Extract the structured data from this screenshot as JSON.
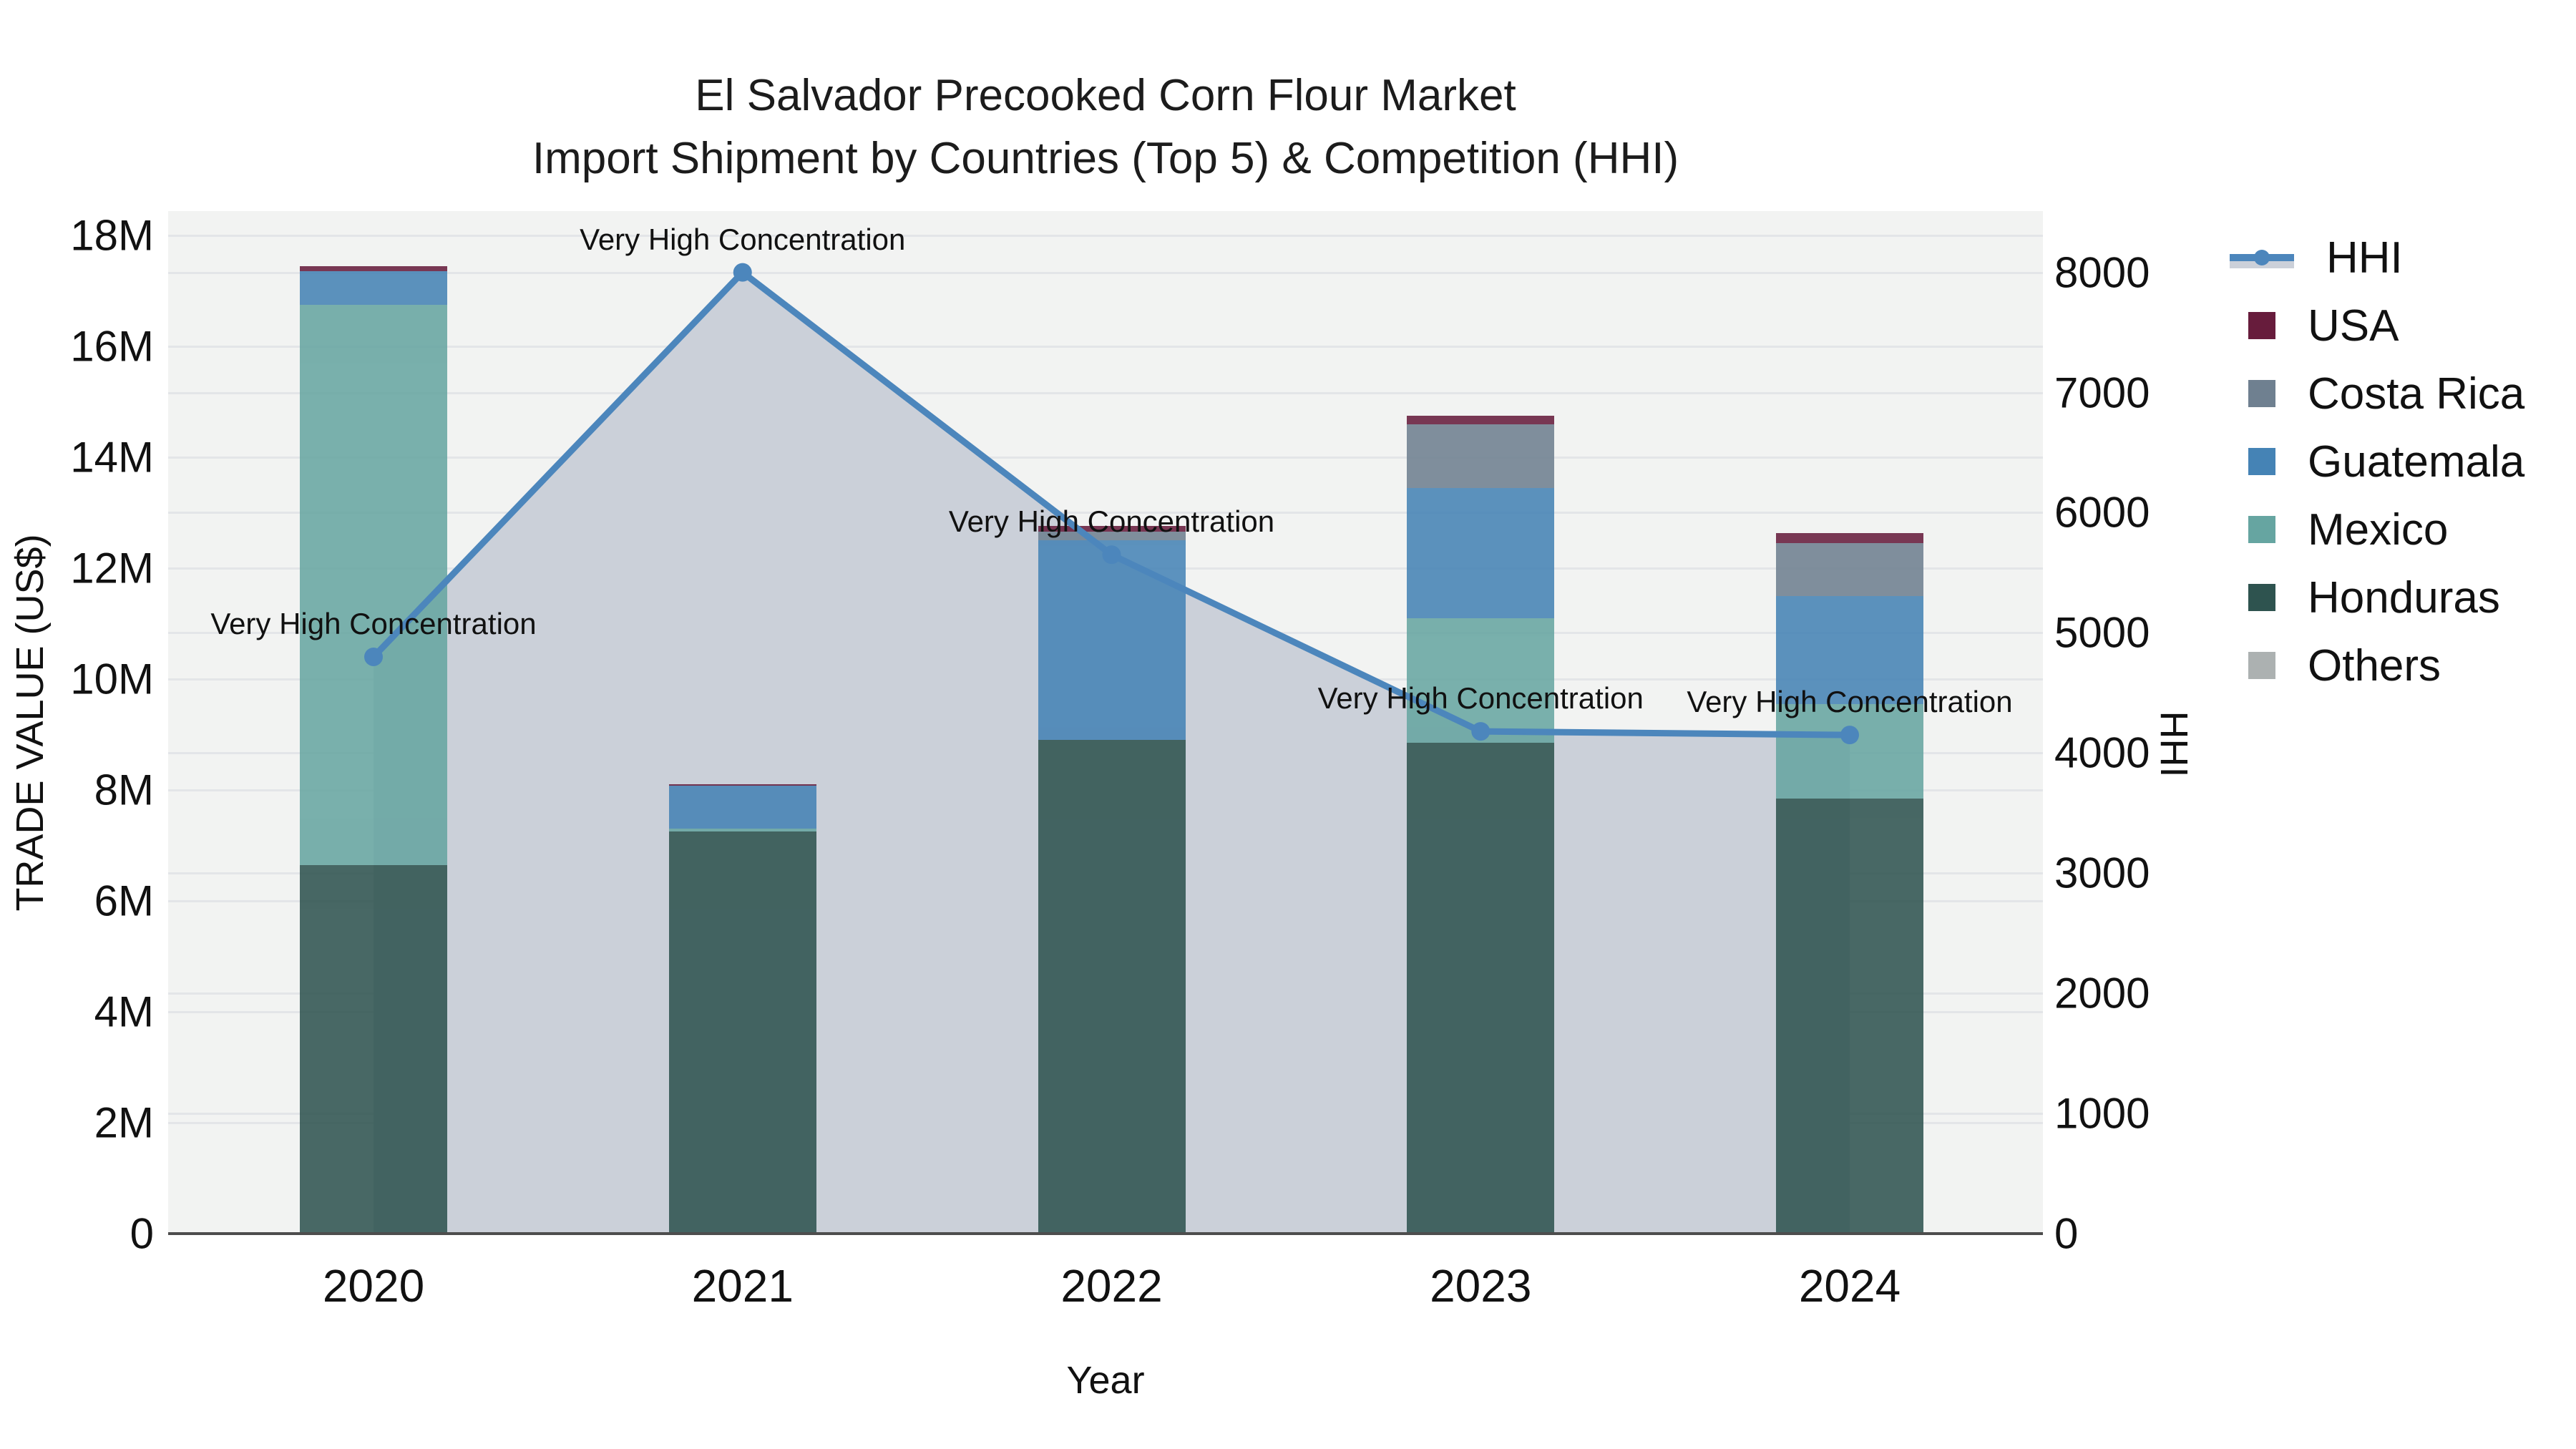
{
  "title": {
    "line1": "El Salvador Precooked Corn Flour Market",
    "line2": "Import Shipment by Countries (Top 5) & Competition (HHI)"
  },
  "axes": {
    "left_title": "TRADE VALUE (US$)",
    "right_title": "HHI",
    "x_title": "Year",
    "left_tick_labels": [
      "0",
      "2M",
      "4M",
      "6M",
      "8M",
      "10M",
      "12M",
      "14M",
      "16M",
      "18M"
    ],
    "right_tick_labels": [
      "0",
      "1000",
      "2000",
      "3000",
      "4000",
      "5000",
      "6000",
      "7000",
      "8000"
    ]
  },
  "colors": {
    "plot_bg": "#f2f3f2",
    "grid": "#e3e5e8",
    "axis_line": "#4d4d4d",
    "hhi": "#4c86bc",
    "hhi_area": "#cbd0d9",
    "usa": "#671c3c",
    "costa_rica": "#6f8090",
    "guatemala": "#4583b5",
    "mexico": "#66a5a1",
    "honduras": "#2e534f",
    "others": "#acb1b1",
    "text": "#111111"
  },
  "legend": [
    {
      "key": "hhi",
      "label": "HHI",
      "glyph": "line-marker"
    },
    {
      "key": "usa",
      "label": "USA",
      "glyph": "square"
    },
    {
      "key": "costa_rica",
      "label": "Costa Rica",
      "glyph": "square"
    },
    {
      "key": "guatemala",
      "label": "Guatemala",
      "glyph": "square"
    },
    {
      "key": "mexico",
      "label": "Mexico",
      "glyph": "square"
    },
    {
      "key": "honduras",
      "label": "Honduras",
      "glyph": "square"
    },
    {
      "key": "others",
      "label": "Others",
      "glyph": "square"
    }
  ],
  "chart_data": {
    "type": "bar",
    "subtype": "stacked-bars-with-line-overlay",
    "title": "El Salvador Precooked Corn Flour Market — Import Shipment by Countries (Top 5) & Competition (HHI)",
    "xlabel": "Year",
    "ylabel": "TRADE VALUE (US$)",
    "y2label": "HHI",
    "categories": [
      "2020",
      "2021",
      "2022",
      "2023",
      "2024"
    ],
    "bar_units": "million US$",
    "series": [
      {
        "name": "Honduras",
        "color_key": "honduras",
        "values": [
          6.65,
          7.25,
          8.9,
          8.85,
          7.85
        ]
      },
      {
        "name": "Mexico",
        "color_key": "mexico",
        "values": [
          10.1,
          0.05,
          0.0,
          2.25,
          1.7
        ]
      },
      {
        "name": "Guatemala",
        "color_key": "guatemala",
        "values": [
          0.6,
          0.78,
          3.6,
          2.35,
          1.95
        ]
      },
      {
        "name": "Costa Rica",
        "color_key": "costa_rica",
        "values": [
          0.0,
          0.0,
          0.16,
          1.15,
          0.95
        ]
      },
      {
        "name": "USA",
        "color_key": "usa",
        "values": [
          0.1,
          0.02,
          0.1,
          0.15,
          0.18
        ]
      },
      {
        "name": "Others",
        "color_key": "others",
        "values": [
          0.0,
          0.0,
          0.0,
          0.0,
          0.0
        ]
      }
    ],
    "bar_totals": [
      17.45,
      8.1,
      12.76,
      14.75,
      12.63
    ],
    "line_series": {
      "name": "HHI",
      "axis": "right",
      "values": [
        4800,
        8000,
        5650,
        4180,
        4150
      ],
      "area_fill": true
    },
    "annotations": [
      {
        "text": "Very High Concentration",
        "category": "2020"
      },
      {
        "text": "Very High Concentration",
        "category": "2021"
      },
      {
        "text": "Very High Concentration",
        "category": "2022"
      },
      {
        "text": "Very High Concentration",
        "category": "2023"
      },
      {
        "text": "Very High Concentration",
        "category": "2024"
      }
    ],
    "left_axis": {
      "range": [
        0,
        18440000
      ],
      "tick_step": 2000000,
      "grid": true
    },
    "right_axis": {
      "range": [
        0,
        8510
      ],
      "tick_step": 1000,
      "grid": true
    },
    "legend_position": "right"
  }
}
